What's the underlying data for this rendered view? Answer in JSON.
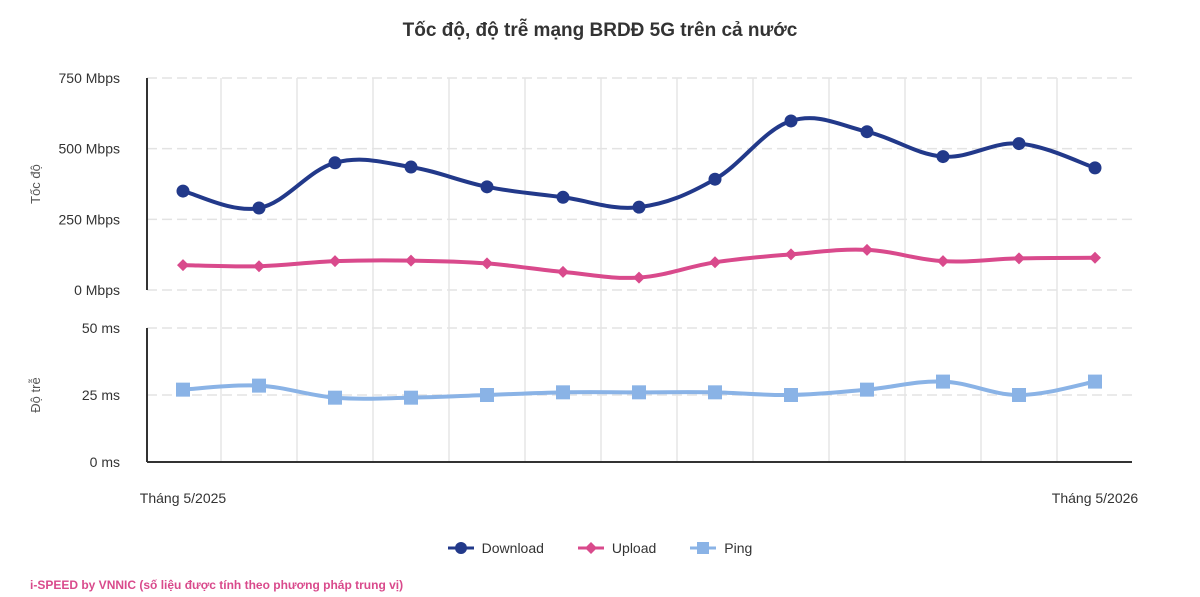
{
  "chart_data": {
    "type": "line",
    "title": "Tốc độ, độ trễ mạng BRDĐ 5G trên cả nước",
    "x_tick_labels": [
      "Tháng 5/2025",
      "Tháng 5/2026"
    ],
    "x_points": 13,
    "panels": [
      {
        "ylabel": "Tốc độ",
        "ylim": [
          0,
          750
        ],
        "y_ticks": [
          {
            "value": 0,
            "label": "0 Mbps"
          },
          {
            "value": 250,
            "label": "250 Mbps"
          },
          {
            "value": 500,
            "label": "500 Mbps"
          },
          {
            "value": 750,
            "label": "750 Mbps"
          }
        ],
        "series": [
          {
            "name": "Download",
            "color": "#22398a",
            "marker": "circle",
            "values": [
              350,
              290,
              450,
              435,
              365,
              328,
              293,
              392,
              598,
              560,
              472,
              518,
              432
            ]
          },
          {
            "name": "Upload",
            "color": "#d94a8c",
            "marker": "diamond",
            "values": [
              88,
              84,
              102,
              104,
              94,
              64,
              44,
              98,
              126,
              142,
              102,
              112,
              114
            ]
          }
        ]
      },
      {
        "ylabel": "Độ trễ",
        "ylim": [
          0,
          50
        ],
        "y_ticks": [
          {
            "value": 0,
            "label": "0 ms"
          },
          {
            "value": 25,
            "label": "25 ms"
          },
          {
            "value": 50,
            "label": "50 ms"
          }
        ],
        "series": [
          {
            "name": "Ping",
            "color": "#8ab3e6",
            "marker": "square",
            "values": [
              27,
              28.5,
              24,
              24,
              25,
              26,
              26,
              26,
              25,
              27,
              30,
              25,
              30
            ]
          }
        ]
      }
    ],
    "grid": true,
    "legend_position": "bottom-center"
  },
  "legend": [
    {
      "label": "Download",
      "color": "#22398a",
      "marker": "circle"
    },
    {
      "label": "Upload",
      "color": "#d94a8c",
      "marker": "diamond"
    },
    {
      "label": "Ping",
      "color": "#8ab3e6",
      "marker": "square"
    }
  ],
  "footer": "i-SPEED by VNNIC (số liệu được tính theo phương pháp trung vị)"
}
